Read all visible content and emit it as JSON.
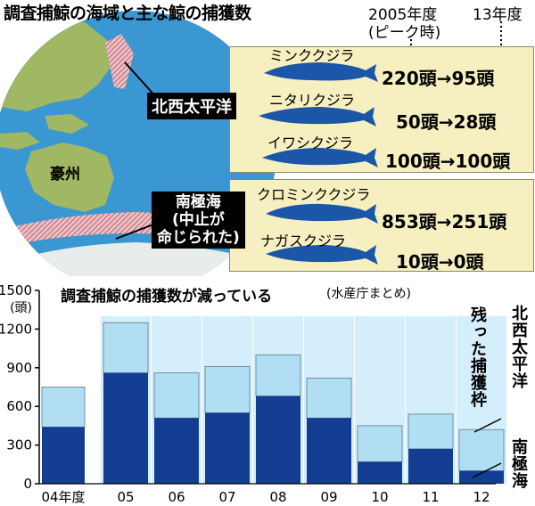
{
  "title": "調査捕鯨の海域と主な鯨の捕獲数",
  "year_headers": {
    "from_main": "2005年度",
    "from_sub": "(ピーク時)",
    "to": "13年度"
  },
  "map_labels": {
    "australia": "豪州"
  },
  "regions": [
    {
      "id": "north-pacific",
      "tag": "北西太平洋",
      "whales": [
        {
          "name": "ミンククジラ",
          "catch": "220頭→95頭"
        },
        {
          "name": "ニタリクジラ",
          "catch": "50頭→28頭"
        },
        {
          "name": "イワシクジラ",
          "catch": "100頭→100頭"
        }
      ]
    },
    {
      "id": "antarctic",
      "tag_lines": [
        "南極海",
        "(中止が",
        "命じられた)"
      ],
      "whales": [
        {
          "name": "クロミンククジラ",
          "catch": "853頭→251頭"
        },
        {
          "name": "ナガスクジラ",
          "catch": "10頭→0頭"
        }
      ]
    }
  ],
  "colors": {
    "antarctic": "#123d93",
    "north_pacific": "#b2def4",
    "remaining_quota": "#d4eefb",
    "panel": "#f6efc0",
    "whale": "#1c56a8",
    "ocean": "#3a97d1",
    "land": "#a0b864"
  },
  "chart_data": {
    "type": "bar",
    "title": "調査捕鯨の捕獲数が減っている",
    "source": "(水産庁まとめ)",
    "ylabel": "(頭)",
    "ylim": [
      0,
      1500
    ],
    "yticks": [
      "0",
      "300",
      "600",
      "900",
      "1200",
      "1500"
    ],
    "categories": [
      "04年度",
      "05",
      "06",
      "07",
      "08",
      "09",
      "10",
      "11",
      "12"
    ],
    "series": [
      {
        "name": "南極海",
        "values": [
          440,
          860,
          510,
          550,
          680,
          510,
          170,
          270,
          100
        ]
      },
      {
        "name": "北西太平洋",
        "values": [
          310,
          390,
          350,
          360,
          320,
          310,
          280,
          270,
          320
        ]
      },
      {
        "name": "残った捕獲枠",
        "values": [
          0,
          0,
          0,
          0,
          0,
          0,
          0,
          0,
          0
        ]
      }
    ],
    "quota_total": [
      0,
      1300,
      1300,
      1300,
      1300,
      1300,
      1300,
      1300,
      1300
    ],
    "labels": {
      "remaining": "残った捕獲枠",
      "north_pacific": "北西太平洋",
      "antarctic": "南極海"
    }
  }
}
